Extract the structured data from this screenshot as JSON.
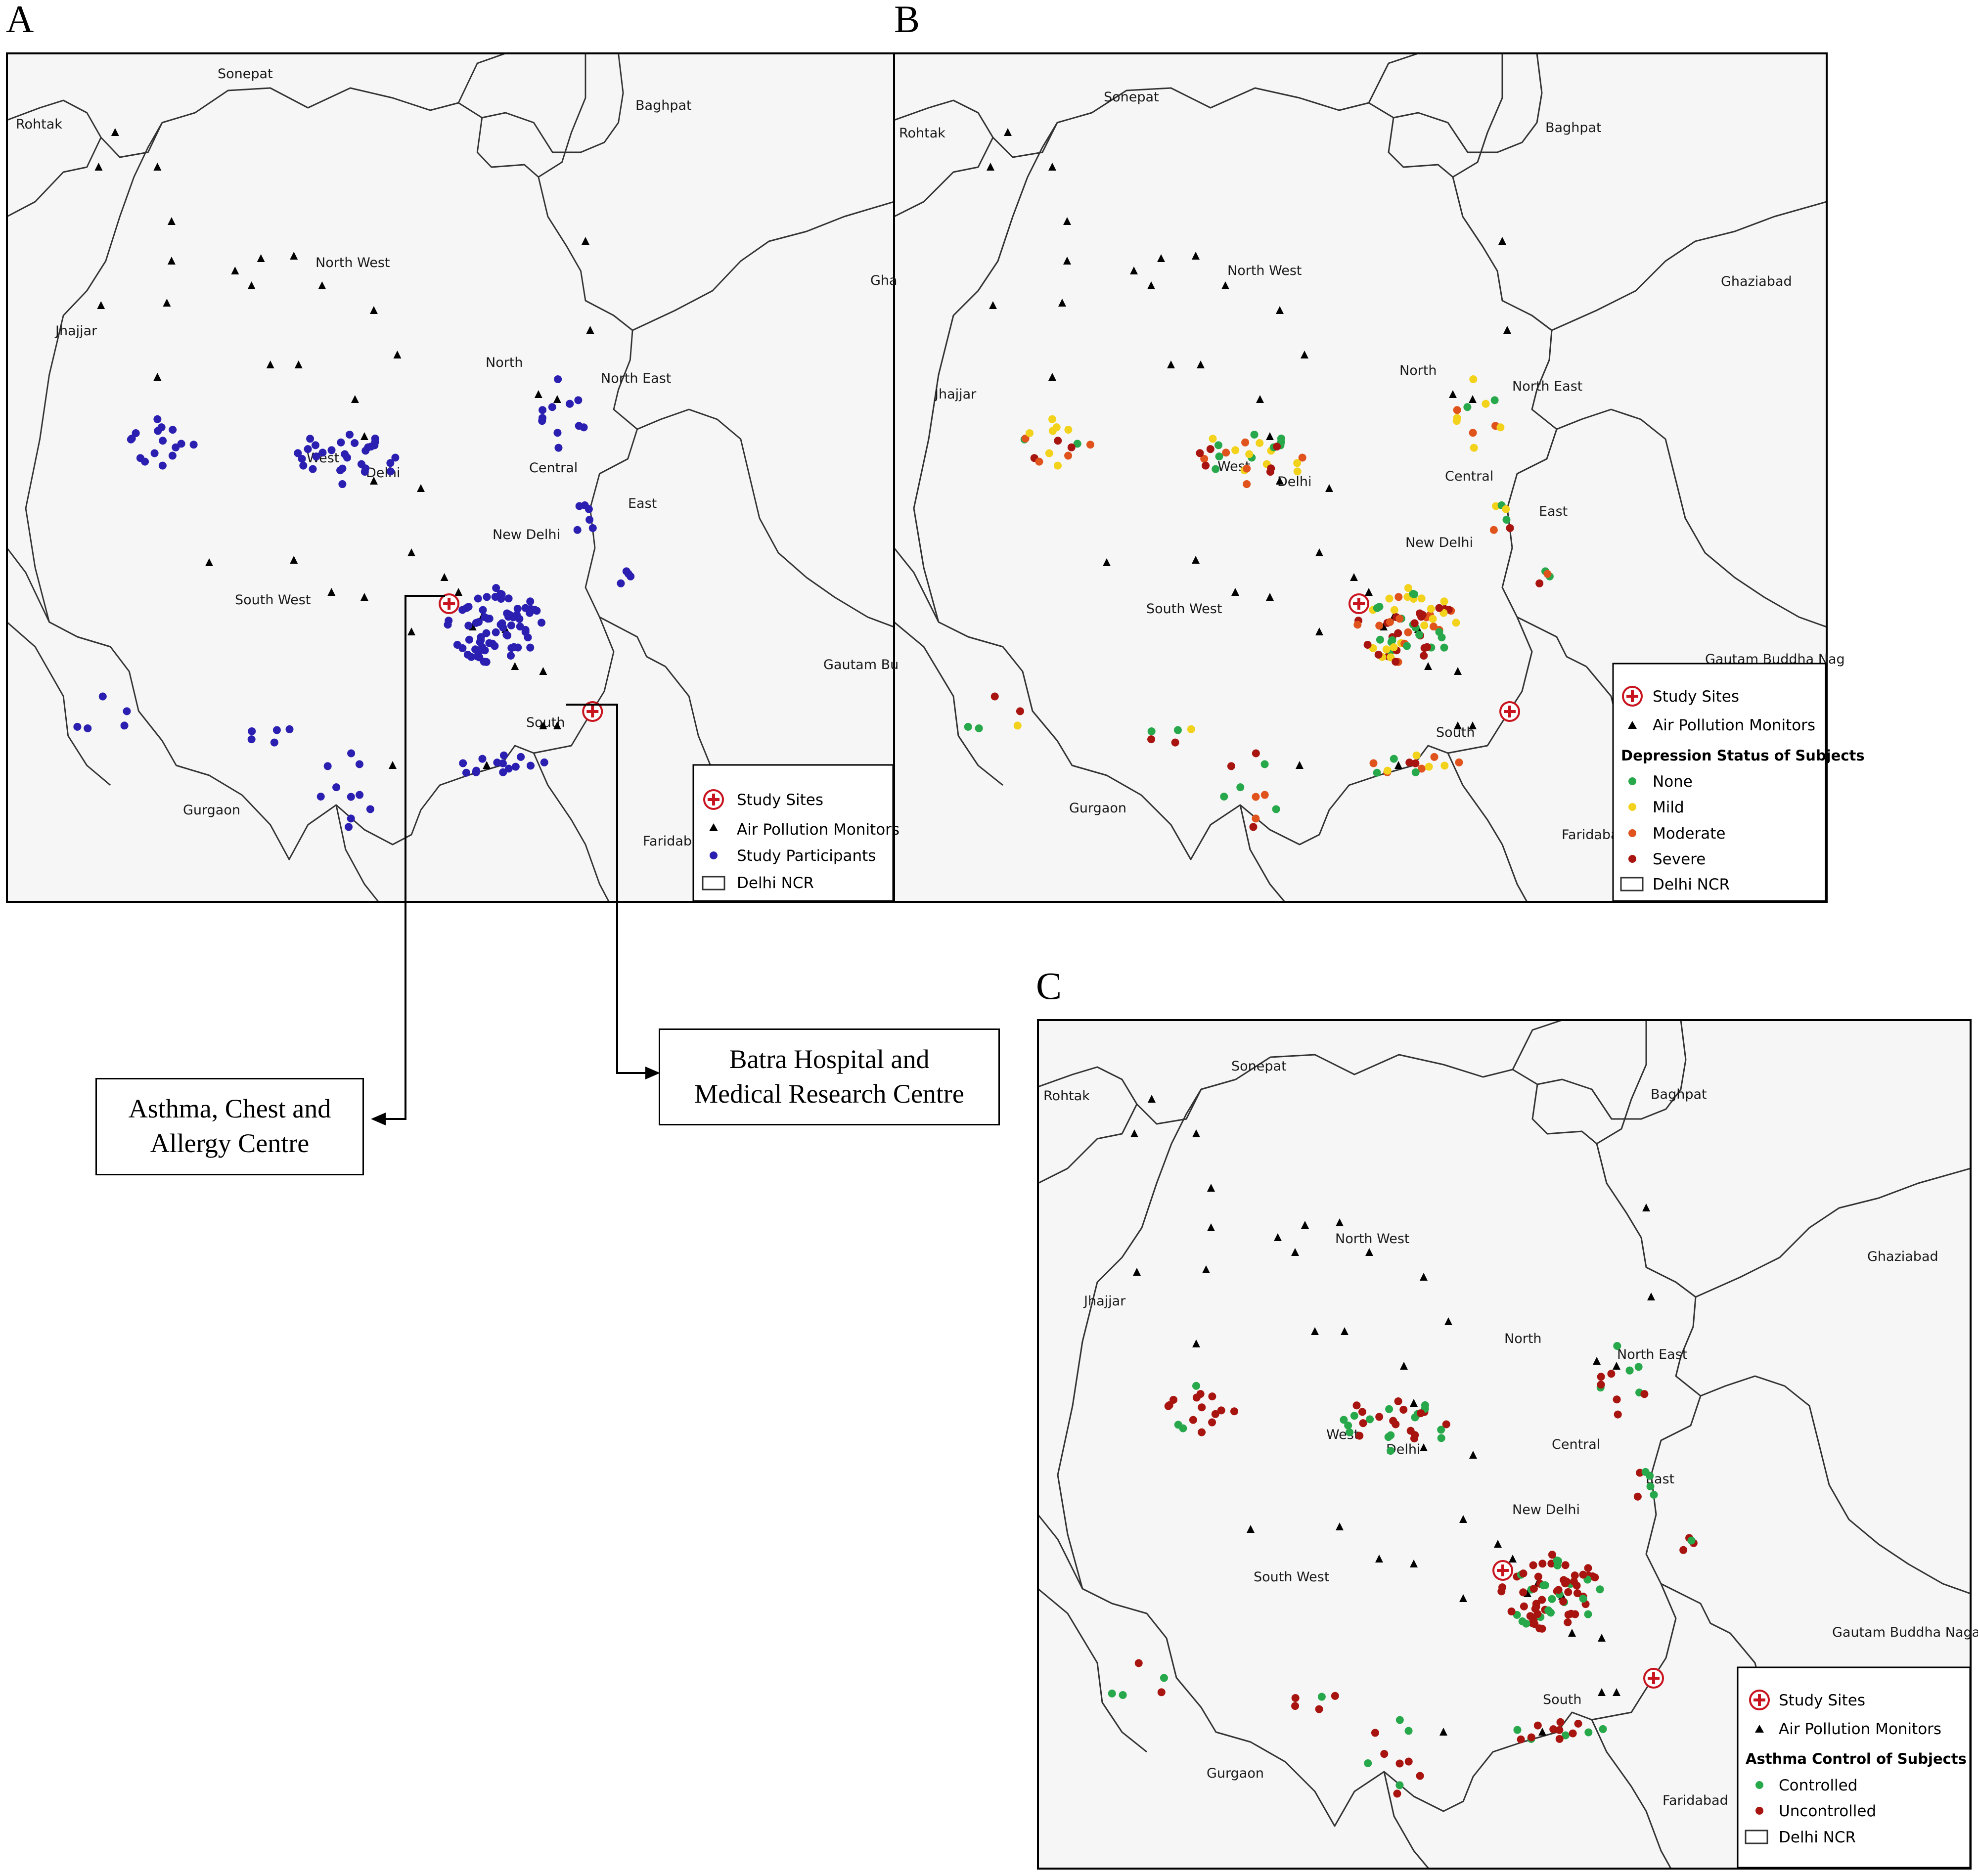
{
  "panels": {
    "a": {
      "letter": "A"
    },
    "b": {
      "letter": "B"
    },
    "c": {
      "letter": "C"
    }
  },
  "region_labels": {
    "sonepat": "Sonepat",
    "rohtak": "Rohtak",
    "baghpat": "Baghpat",
    "north_west": "North West",
    "jhajjar": "Jhajjar",
    "ghaziabad": "Ghaziabad",
    "ghaziabad_cut": "Gha",
    "north": "North",
    "north_east": "North East",
    "west": "West",
    "delhi": "Delhi",
    "central": "Central",
    "east": "East",
    "new_delhi": "New Delhi",
    "south_west": "South West",
    "south": "South",
    "gautam": "Gautam Buddha Nagar",
    "gautam_cut_a": "Gautam Bu",
    "gautam_cut_b": "Gautam Buddha Nag",
    "gurgaon": "Gurgaon",
    "faridabad": "Faridabad",
    "faridabad_cut": "Faridaba"
  },
  "legend_a": {
    "study_sites": "Study Sites",
    "monitors": "Air Pollution Monitors",
    "participants": "Study Participants",
    "delhi_ncr": "Delhi NCR"
  },
  "legend_b": {
    "study_sites": "Study Sites",
    "monitors": "Air Pollution Monitors",
    "title": "Depression Status of Subjects",
    "none": "None",
    "mild": "Mild",
    "moderate": "Moderate",
    "severe": "Severe",
    "delhi_ncr": "Delhi NCR"
  },
  "legend_c": {
    "study_sites": "Study Sites",
    "monitors": "Air Pollution Monitors",
    "title": "Asthma Control of Subjects",
    "controlled": "Controlled",
    "uncontrolled": "Uncontrolled",
    "delhi_ncr": "Delhi NCR"
  },
  "callouts": {
    "asthma_centre_line1": "Asthma, Chest and",
    "asthma_centre_line2": "Allergy Centre",
    "batra_line1": "Batra Hospital and",
    "batra_line2": "Medical Research Centre"
  },
  "colors": {
    "map_fill": "#f6f6f6",
    "boundary": "#333333",
    "participant": "#2a1fb0",
    "site": "#c8141e",
    "none": "#27a84a",
    "mild": "#f2d21b",
    "moderate": "#e0531c",
    "severe": "#a8140f",
    "controlled": "#27a84a",
    "uncontrolled": "#a8140f"
  }
}
